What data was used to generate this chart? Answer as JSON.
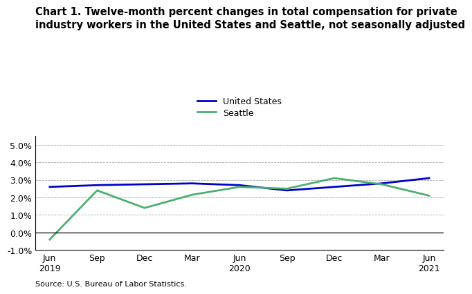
{
  "title": "Chart 1. Twelve-month percent changes in total compensation for private\nindustry workers in the United States and Seattle, not seasonally adjusted",
  "source": "Source: U.S. Bureau of Labor Statistics.",
  "x_labels": [
    "Jun\n2019",
    "Sep",
    "Dec",
    "Mar",
    "Jun\n2020",
    "Sep",
    "Dec",
    "Mar",
    "Jun\n2021"
  ],
  "x_positions": [
    0,
    1,
    2,
    3,
    4,
    5,
    6,
    7,
    8
  ],
  "us_values": [
    2.6,
    2.7,
    2.75,
    2.8,
    2.7,
    2.4,
    2.6,
    2.8,
    3.1
  ],
  "seattle_values": [
    -0.4,
    2.4,
    1.4,
    2.15,
    2.6,
    2.5,
    3.1,
    2.75,
    2.1
  ],
  "us_color": "#0000CC",
  "seattle_color": "#4CAF70",
  "ylim": [
    -1.0,
    5.5
  ],
  "yticks": [
    -1.0,
    0.0,
    1.0,
    2.0,
    3.0,
    4.0,
    5.0
  ],
  "legend_labels": [
    "United States",
    "Seattle"
  ],
  "line_width": 2.0
}
